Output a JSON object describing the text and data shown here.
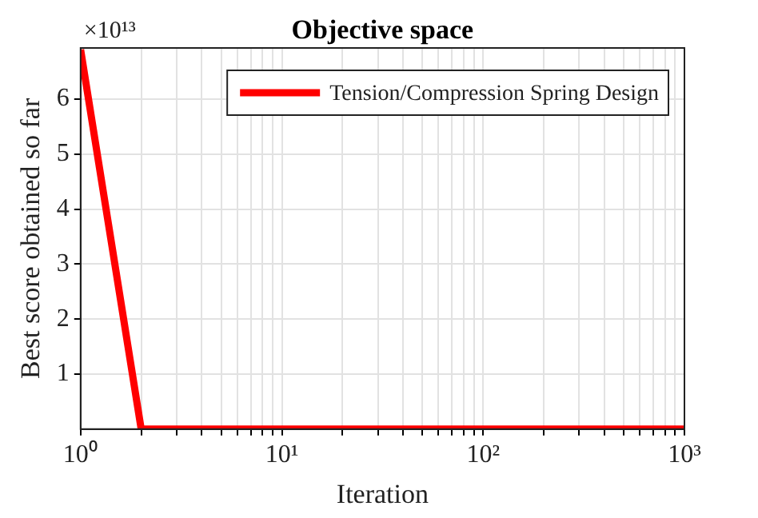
{
  "chart_data": {
    "type": "line",
    "title": "Objective space",
    "xlabel": "Iteration",
    "ylabel": "Best score obtained so far",
    "annotations": [
      "×10¹³"
    ],
    "x": [
      1,
      2,
      1000
    ],
    "series": [
      {
        "name": "Tension/Compression Spring Design",
        "color": "#ff0000",
        "values": [
          6.9,
          0,
          0
        ]
      }
    ],
    "log": "x",
    "xlim": [
      1,
      1000
    ],
    "xticks": [
      {
        "value": 1,
        "label": "10⁰"
      },
      {
        "value": 2,
        "label": null
      },
      {
        "value": 3,
        "label": null
      },
      {
        "value": 4,
        "label": null
      },
      {
        "value": 5,
        "label": null
      },
      {
        "value": 6,
        "label": null
      },
      {
        "value": 7,
        "label": null
      },
      {
        "value": 8,
        "label": null
      },
      {
        "value": 9,
        "label": null
      },
      {
        "value": 10,
        "label": "10¹"
      },
      {
        "value": 20,
        "label": null
      },
      {
        "value": 30,
        "label": null
      },
      {
        "value": 40,
        "label": null
      },
      {
        "value": 50,
        "label": null
      },
      {
        "value": 60,
        "label": null
      },
      {
        "value": 70,
        "label": null
      },
      {
        "value": 80,
        "label": null
      },
      {
        "value": 90,
        "label": null
      },
      {
        "value": 100,
        "label": "10²"
      },
      {
        "value": 200,
        "label": null
      },
      {
        "value": 300,
        "label": null
      },
      {
        "value": 400,
        "label": null
      },
      {
        "value": 500,
        "label": null
      },
      {
        "value": 600,
        "label": null
      },
      {
        "value": 700,
        "label": null
      },
      {
        "value": 800,
        "label": null
      },
      {
        "value": 900,
        "label": null
      },
      {
        "value": 1000,
        "label": "10³"
      }
    ],
    "ylim": [
      0,
      6.93
    ],
    "yticks": [
      1,
      2,
      3,
      4,
      5,
      6
    ],
    "grid": true,
    "legend": "top right",
    "marker": "none",
    "line_style": "solid"
  }
}
